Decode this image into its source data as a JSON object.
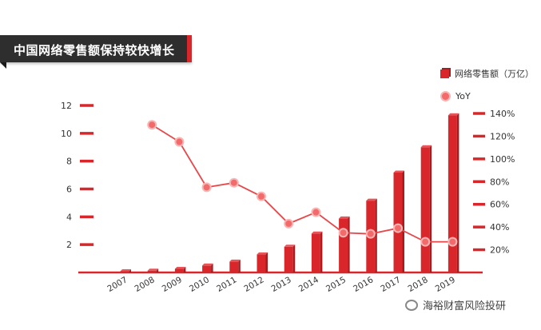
{
  "title": "中国网络零售额保持较快增长",
  "legend": {
    "bar_label": "网络零售额（万亿）",
    "line_label": "YoY"
  },
  "watermark": "海裕财富风险投研",
  "colors": {
    "bar": "#d9262a",
    "bar_side": "#a81b1f",
    "line": "#e8474a",
    "marker": "#f36a6a",
    "marker_ring": "#f9b4b4"
  },
  "chart_data": {
    "type": "bar",
    "categories": [
      "2007",
      "2008",
      "2009",
      "2010",
      "2011",
      "2012",
      "2013",
      "2014",
      "2015",
      "2016",
      "2017",
      "2018",
      "2019"
    ],
    "series": [
      {
        "name": "网络零售额（万亿）",
        "type": "bar",
        "axis": "left",
        "values": [
          0.05,
          0.13,
          0.26,
          0.5,
          0.78,
          1.3,
          1.85,
          2.8,
          3.88,
          5.16,
          7.18,
          9.0,
          11.3
        ]
      },
      {
        "name": "YoY",
        "type": "line",
        "axis": "right",
        "values": [
          null,
          130,
          115,
          75,
          79,
          67,
          43,
          53,
          35,
          34,
          39,
          27,
          27
        ]
      }
    ],
    "left_axis": {
      "ticks": [
        2,
        4,
        6,
        8,
        10,
        12
      ],
      "range": [
        0,
        12
      ]
    },
    "right_axis": {
      "ticks": [
        "20%",
        "40%",
        "60%",
        "80%",
        "100%",
        "120%",
        "140%"
      ],
      "range": [
        0,
        140
      ]
    }
  }
}
